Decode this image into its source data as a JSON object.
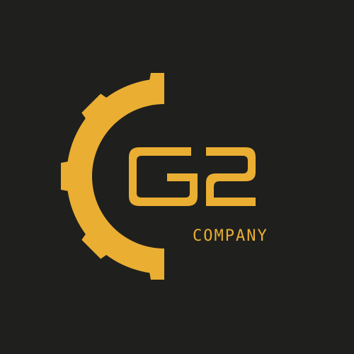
{
  "logo": {
    "monogram": "G2",
    "company_word": "COMPANY",
    "icon": "gear-icon"
  },
  "colors": {
    "background": "#1f201d",
    "accent": "#eaae33"
  }
}
